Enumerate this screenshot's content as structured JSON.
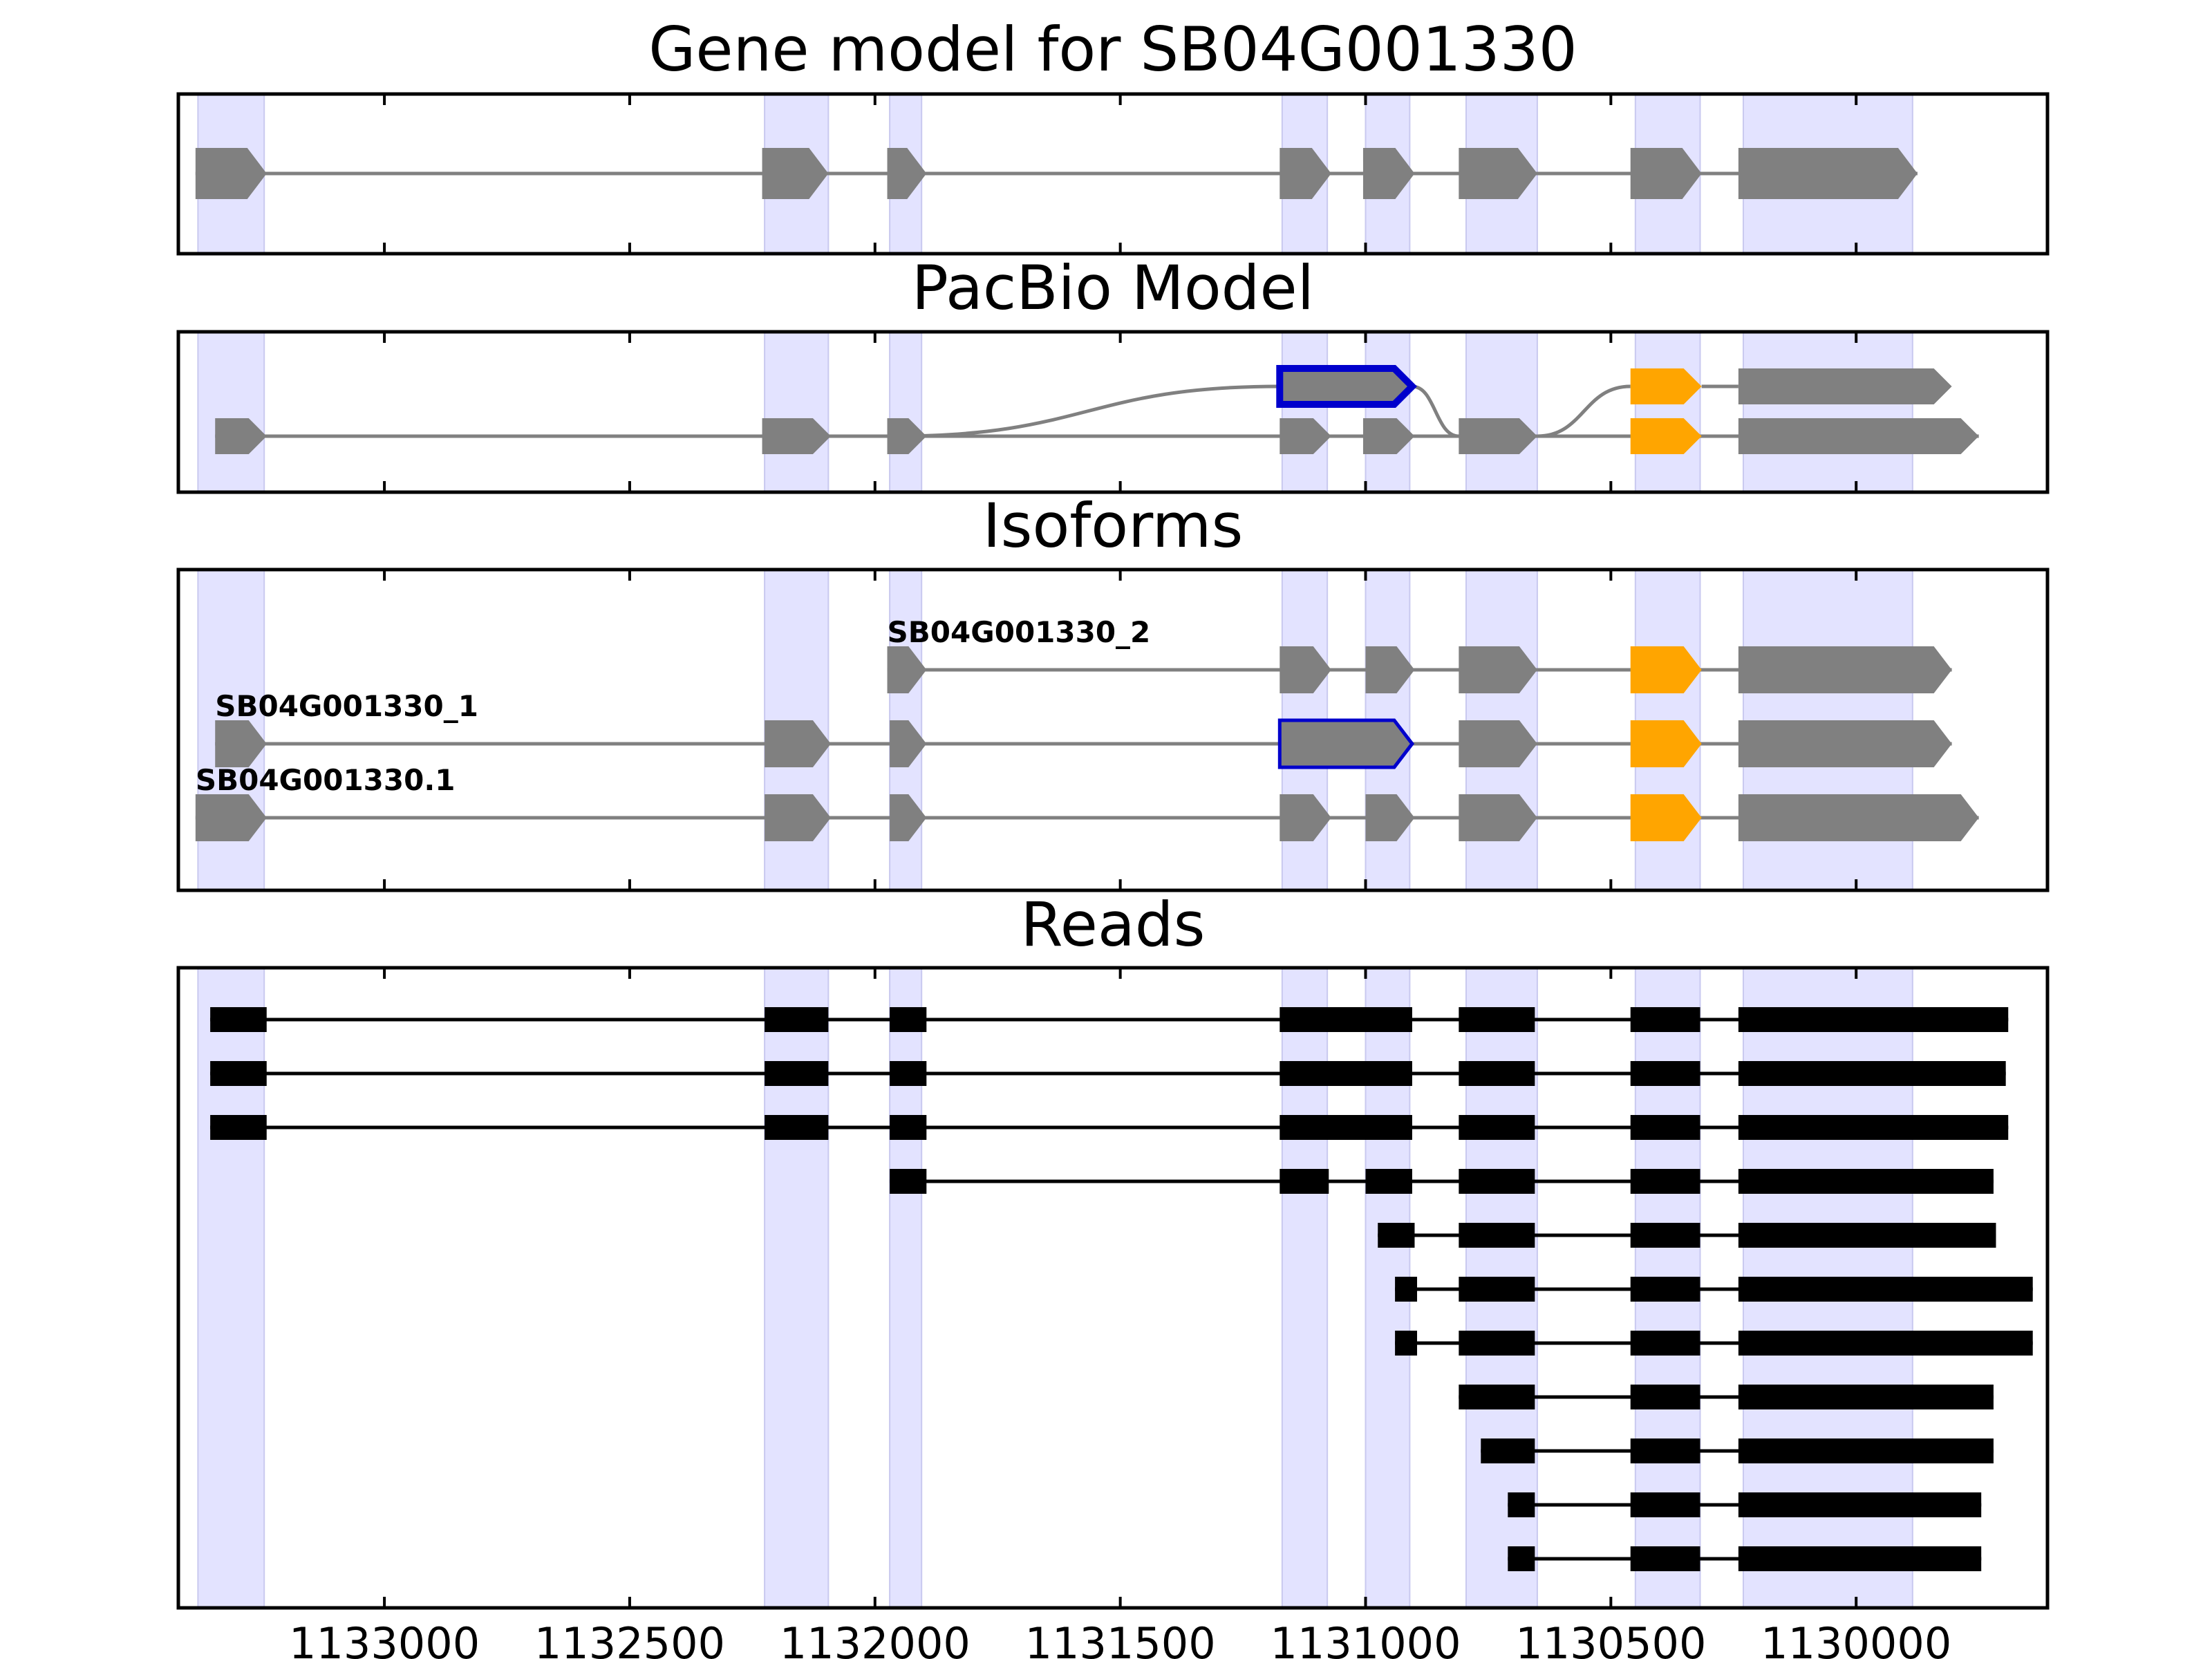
{
  "chart_data": {
    "type": "gene-structure",
    "x_reversed": true,
    "xlim": [
      1133420,
      1129610
    ],
    "x_ticks": [
      1133000,
      1132500,
      1132000,
      1131500,
      1131000,
      1130500,
      1130000
    ],
    "x_tick_labels": [
      "1133000",
      "1132500",
      "1132000",
      "1131500",
      "1131000",
      "1130500",
      "1130000"
    ],
    "colors": {
      "exon": "#808080",
      "highlight_exon": "#FFA500",
      "outlined_exon": "#0000CC",
      "intron": "#808080",
      "shaded_region": "#E3E3FF",
      "read": "#000000"
    },
    "shaded_regions": [
      [
        1133380,
        1133245
      ],
      [
        1132225,
        1132095
      ],
      [
        1131970,
        1131905
      ],
      [
        1131170,
        1131078
      ],
      [
        1131000,
        1130910
      ],
      [
        1130795,
        1130650
      ],
      [
        1130450,
        1130318
      ],
      [
        1130230,
        1129885
      ]
    ],
    "panels": [
      {
        "title": "Gene model for SB04G001330",
        "rows": [
          {
            "label": "",
            "exons": [
              {
                "start": 1133385,
                "end": 1133240
              },
              {
                "start": 1132230,
                "end": 1132095
              },
              {
                "start": 1131975,
                "end": 1131895
              },
              {
                "start": 1131175,
                "end": 1131070
              },
              {
                "start": 1131005,
                "end": 1130900
              },
              {
                "start": 1130810,
                "end": 1130650
              },
              {
                "start": 1130460,
                "end": 1130315
              },
              {
                "start": 1130240,
                "end": 1129875
              }
            ]
          }
        ]
      },
      {
        "title": "PacBio Model",
        "rows": [
          {
            "label": "",
            "lane": 0,
            "exons": [
              {
                "start": 1131175,
                "end": 1130905,
                "style": "outlined"
              },
              {
                "start": 1130460,
                "end": 1130315,
                "style": "highlight"
              },
              {
                "start": 1130240,
                "end": 1129805
              }
            ]
          },
          {
            "label": "",
            "lane": 1,
            "exons": [
              {
                "start": 1133345,
                "end": 1133240
              },
              {
                "start": 1132230,
                "end": 1132090
              },
              {
                "start": 1131975,
                "end": 1131895
              },
              {
                "start": 1131175,
                "end": 1131070
              },
              {
                "start": 1131005,
                "end": 1130900
              },
              {
                "start": 1130810,
                "end": 1130650
              },
              {
                "start": 1130460,
                "end": 1130315,
                "style": "highlight"
              },
              {
                "start": 1130240,
                "end": 1129750
              }
            ]
          }
        ],
        "connectors": [
          {
            "from": 1131960,
            "from_lane": 1,
            "to": 1131175,
            "to_lane": 0
          },
          {
            "from": 1130905,
            "from_lane": 0,
            "to": 1130810,
            "to_lane": 1
          },
          {
            "from": 1130650,
            "from_lane": 1,
            "to": 1130460,
            "to_lane": 0
          }
        ]
      },
      {
        "title": "Isoforms",
        "rows": [
          {
            "label": "SB04G001330_2",
            "exons": [
              {
                "start": 1131975,
                "end": 1131895
              },
              {
                "start": 1131175,
                "end": 1131070
              },
              {
                "start": 1131000,
                "end": 1130900
              },
              {
                "start": 1130810,
                "end": 1130650
              },
              {
                "start": 1130460,
                "end": 1130315,
                "style": "highlight"
              },
              {
                "start": 1130240,
                "end": 1129805
              }
            ]
          },
          {
            "label": "SB04G001330_1",
            "exons": [
              {
                "start": 1133345,
                "end": 1133240
              },
              {
                "start": 1132225,
                "end": 1132090
              },
              {
                "start": 1131970,
                "end": 1131895
              },
              {
                "start": 1131175,
                "end": 1130905,
                "style": "outlined"
              },
              {
                "start": 1130810,
                "end": 1130650
              },
              {
                "start": 1130460,
                "end": 1130315,
                "style": "highlight"
              },
              {
                "start": 1130240,
                "end": 1129805
              }
            ]
          },
          {
            "label": "SB04G001330.1",
            "exons": [
              {
                "start": 1133385,
                "end": 1133240
              },
              {
                "start": 1132225,
                "end": 1132090
              },
              {
                "start": 1131970,
                "end": 1131895
              },
              {
                "start": 1131175,
                "end": 1131070
              },
              {
                "start": 1131000,
                "end": 1130900
              },
              {
                "start": 1130810,
                "end": 1130650
              },
              {
                "start": 1130460,
                "end": 1130315,
                "style": "highlight"
              },
              {
                "start": 1130240,
                "end": 1129750
              }
            ]
          }
        ]
      },
      {
        "title": "Reads",
        "rows": [
          {
            "label": "",
            "exons": [
              {
                "start": 1133355,
                "end": 1133240
              },
              {
                "start": 1132225,
                "end": 1132095
              },
              {
                "start": 1131970,
                "end": 1131895
              },
              {
                "start": 1131175,
                "end": 1130905
              },
              {
                "start": 1130810,
                "end": 1130655
              },
              {
                "start": 1130460,
                "end": 1130318
              },
              {
                "start": 1130240,
                "end": 1129690
              }
            ]
          },
          {
            "label": "",
            "exons": [
              {
                "start": 1133355,
                "end": 1133240
              },
              {
                "start": 1132225,
                "end": 1132095
              },
              {
                "start": 1131970,
                "end": 1131895
              },
              {
                "start": 1131175,
                "end": 1130905
              },
              {
                "start": 1130810,
                "end": 1130655
              },
              {
                "start": 1130460,
                "end": 1130318
              },
              {
                "start": 1130240,
                "end": 1129695
              }
            ]
          },
          {
            "label": "",
            "exons": [
              {
                "start": 1133355,
                "end": 1133240
              },
              {
                "start": 1132225,
                "end": 1132095
              },
              {
                "start": 1131970,
                "end": 1131895
              },
              {
                "start": 1131175,
                "end": 1130905
              },
              {
                "start": 1130810,
                "end": 1130655
              },
              {
                "start": 1130460,
                "end": 1130318
              },
              {
                "start": 1130240,
                "end": 1129690
              }
            ]
          },
          {
            "label": "",
            "exons": [
              {
                "start": 1131970,
                "end": 1131895
              },
              {
                "start": 1131175,
                "end": 1131075
              },
              {
                "start": 1131000,
                "end": 1130905
              },
              {
                "start": 1130810,
                "end": 1130655
              },
              {
                "start": 1130460,
                "end": 1130318
              },
              {
                "start": 1130240,
                "end": 1129720
              }
            ]
          },
          {
            "label": "",
            "exons": [
              {
                "start": 1130975,
                "end": 1130900
              },
              {
                "start": 1130810,
                "end": 1130655
              },
              {
                "start": 1130460,
                "end": 1130318
              },
              {
                "start": 1130240,
                "end": 1129715
              }
            ]
          },
          {
            "label": "",
            "exons": [
              {
                "start": 1130940,
                "end": 1130895
              },
              {
                "start": 1130810,
                "end": 1130655
              },
              {
                "start": 1130460,
                "end": 1130318
              },
              {
                "start": 1130240,
                "end": 1129640
              }
            ]
          },
          {
            "label": "",
            "exons": [
              {
                "start": 1130940,
                "end": 1130895
              },
              {
                "start": 1130810,
                "end": 1130655
              },
              {
                "start": 1130460,
                "end": 1130318
              },
              {
                "start": 1130240,
                "end": 1129640
              }
            ]
          },
          {
            "label": "",
            "exons": [
              {
                "start": 1130810,
                "end": 1130655
              },
              {
                "start": 1130460,
                "end": 1130318
              },
              {
                "start": 1130240,
                "end": 1129720
              }
            ]
          },
          {
            "label": "",
            "exons": [
              {
                "start": 1130765,
                "end": 1130655
              },
              {
                "start": 1130460,
                "end": 1130318
              },
              {
                "start": 1130240,
                "end": 1129720
              }
            ]
          },
          {
            "label": "",
            "exons": [
              {
                "start": 1130710,
                "end": 1130655
              },
              {
                "start": 1130460,
                "end": 1130318
              },
              {
                "start": 1130240,
                "end": 1129745
              }
            ]
          },
          {
            "label": "",
            "exons": [
              {
                "start": 1130710,
                "end": 1130655
              },
              {
                "start": 1130460,
                "end": 1130318
              },
              {
                "start": 1130240,
                "end": 1129745
              }
            ]
          }
        ]
      }
    ]
  }
}
